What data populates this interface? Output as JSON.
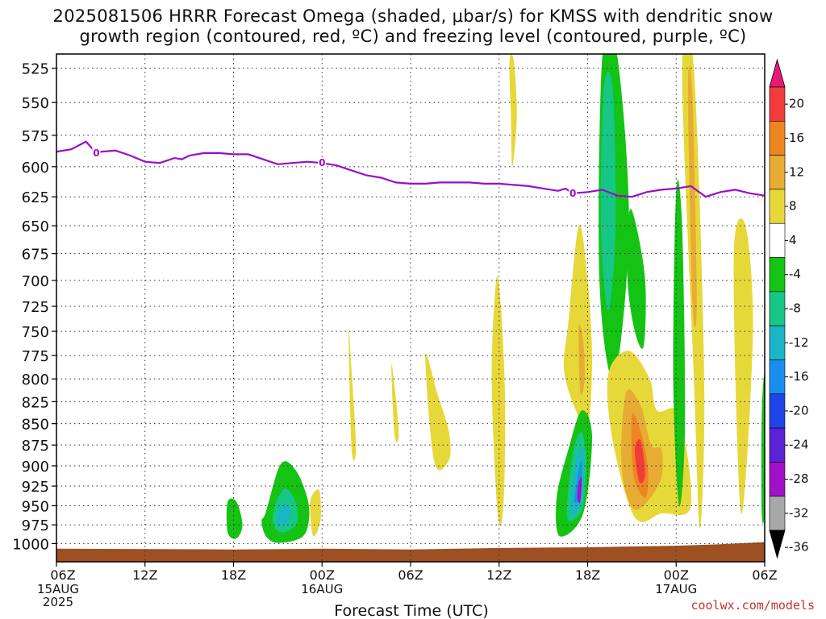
{
  "chart_data": {
    "type": "heatmap",
    "title_line1": "2025081506 HRRR Forecast Omega (shaded, μbar/s) for KMSS with dendritic snow",
    "title_line2": "growth region (contoured, red, ºC) and freezing level (contoured, purple, ºC)",
    "xlabel": "Forecast Time (UTC)",
    "credit": "coolwx.com/models",
    "x_ticks": [
      "06Z",
      "12Z",
      "18Z",
      "00Z",
      "06Z",
      "12Z",
      "18Z",
      "00Z",
      "06Z"
    ],
    "x_tick_hours": [
      0,
      6,
      12,
      18,
      24,
      30,
      36,
      42,
      48
    ],
    "date_labels": [
      {
        "hour": 0,
        "lines": [
          "15AUG",
          "2025"
        ]
      },
      {
        "hour": 18,
        "lines": [
          "16AUG"
        ]
      },
      {
        "hour": 42,
        "lines": [
          "17AUG"
        ]
      }
    ],
    "y_axis": {
      "units": "hPa",
      "ticks": [
        525,
        550,
        575,
        600,
        625,
        650,
        675,
        700,
        725,
        750,
        775,
        800,
        825,
        850,
        875,
        900,
        925,
        950,
        975,
        1000
      ],
      "range": [
        515,
        1025
      ],
      "scale": "log-pressure",
      "inverted": true
    },
    "grid": true,
    "colorbar": {
      "labels": [
        "20",
        "16",
        "12",
        "8",
        "4",
        "-4",
        "-8",
        "-12",
        "-16",
        "-20",
        "-24",
        "-28",
        "-32",
        "-36"
      ],
      "colors": [
        "#f23c3c",
        "#ee8522",
        "#e6ac33",
        "#e7d83a",
        "#ffffff",
        "#14c314",
        "#16c787",
        "#1ab5c6",
        "#1a8ef0",
        "#1f45e8",
        "#5a22d4",
        "#a011c8",
        "#a8a8a8"
      ],
      "top_arrow": "#e6197a",
      "bottom_arrow": "#000000"
    },
    "freezing_level": {
      "color": "#9a0dca",
      "label": "0",
      "label_hours": [
        2.7,
        18.0,
        35.0
      ],
      "x": [
        0,
        1,
        2,
        2.7,
        3,
        4,
        5,
        6,
        7,
        8,
        8.5,
        9,
        10,
        11,
        12,
        13,
        14,
        15,
        16,
        17,
        18,
        19,
        20,
        21,
        22,
        23,
        24,
        25,
        26,
        27,
        28,
        29,
        30,
        31,
        32,
        33,
        34,
        34.5,
        35,
        36,
        37,
        38,
        39,
        40,
        41,
        42,
        43,
        44,
        45,
        46,
        47,
        48
      ],
      "y": [
        588,
        586,
        580,
        589,
        588,
        587,
        591,
        596,
        597,
        593,
        594,
        591,
        589,
        589,
        590,
        590,
        594,
        598,
        597,
        596,
        597,
        599,
        603,
        607,
        609,
        613,
        614,
        614,
        613,
        613,
        613,
        614,
        614,
        615,
        616,
        618,
        620,
        618,
        622,
        621,
        619,
        624,
        625,
        621,
        619,
        618,
        616,
        625,
        621,
        619,
        622,
        624
      ]
    },
    "omega_regions": [
      {
        "value": -8,
        "x": [
          11.6,
          12.2,
          12.6,
          12.2,
          11.6
        ],
        "y": [
          945,
          945,
          975,
          993,
          985
        ]
      },
      {
        "value": -8,
        "x": [
          14.2,
          15.2,
          16.2,
          17.0,
          17.1,
          16.6,
          15.0,
          14.2,
          13.9
        ],
        "y": [
          958,
          898,
          905,
          940,
          970,
          992,
          999,
          990,
          970
        ]
      },
      {
        "value": -12,
        "x": [
          14.8,
          15.5,
          16.2,
          16.3,
          15.4,
          14.7
        ],
        "y": [
          950,
          928,
          945,
          972,
          985,
          975
        ]
      },
      {
        "value": -16,
        "x": [
          15.0,
          15.4,
          15.9,
          15.5,
          15.0
        ],
        "y": [
          962,
          947,
          958,
          975,
          972
        ]
      },
      {
        "value": 4,
        "x": [
          17.2,
          17.8,
          17.9,
          17.4
        ],
        "y": [
          945,
          930,
          968,
          990
        ]
      },
      {
        "value": 4,
        "x": [
          19.8,
          20.0,
          20.3,
          20.0
        ],
        "y": [
          750,
          790,
          878,
          880
        ]
      },
      {
        "value": 4,
        "x": [
          22.7,
          23.0,
          23.2,
          22.9
        ],
        "y": [
          785,
          820,
          865,
          862
        ]
      },
      {
        "value": 4,
        "x": [
          25.0,
          25.8,
          26.6,
          26.6,
          25.6
        ],
        "y": [
          775,
          815,
          860,
          893,
          895
        ]
      },
      {
        "value": 4,
        "x": [
          29.8,
          30.1,
          30.4,
          30.3,
          29.9,
          29.5
        ],
        "y": [
          700,
          722,
          820,
          950,
          960,
          800
        ]
      },
      {
        "value": 4,
        "x": [
          30.7,
          31.0,
          31.2,
          30.9,
          30.8
        ],
        "y": [
          520,
          520,
          560,
          600,
          560
        ]
      },
      {
        "value": 4,
        "x": [
          35.4,
          36.0,
          36.3,
          36.0,
          35.2,
          34.4,
          34.7
        ],
        "y": [
          650,
          700,
          780,
          855,
          835,
          790,
          740
        ]
      },
      {
        "value": 8,
        "x": [
          35.4,
          35.7,
          35.8,
          35.5
        ],
        "y": [
          745,
          760,
          800,
          815
        ]
      },
      {
        "value": -8,
        "x": [
          37.0,
          38.0,
          38.8,
          37.8,
          36.8
        ],
        "y": [
          516,
          516,
          650,
          800,
          700
        ]
      },
      {
        "value": -12,
        "x": [
          37.1,
          37.7,
          37.9,
          37.4,
          36.9
        ],
        "y": [
          540,
          540,
          650,
          730,
          650
        ]
      },
      {
        "value": -8,
        "x": [
          38.8,
          39.2,
          39.9,
          39.8,
          39.2,
          38.7
        ],
        "y": [
          640,
          645,
          700,
          765,
          750,
          700
        ]
      },
      {
        "value": 4,
        "x": [
          37.4,
          38.8,
          40.2,
          40.7,
          42.2,
          43.0,
          41.0,
          39.2,
          37.7
        ],
        "y": [
          795,
          770,
          800,
          835,
          840,
          950,
          960,
          965,
          870
        ]
      },
      {
        "value": 8,
        "x": [
          38.6,
          39.6,
          40.3,
          41.0,
          40.9,
          39.2,
          38.3
        ],
        "y": [
          815,
          830,
          875,
          880,
          920,
          955,
          900
        ]
      },
      {
        "value": 12,
        "x": [
          39.0,
          39.6,
          40.1,
          39.9,
          39.1
        ],
        "y": [
          840,
          860,
          905,
          940,
          910
        ]
      },
      {
        "value": 16,
        "x": [
          39.2,
          39.6,
          39.9,
          39.5
        ],
        "y": [
          880,
          870,
          910,
          920
        ]
      },
      {
        "value": -8,
        "x": [
          34.7,
          35.6,
          36.3,
          35.7,
          34.1,
          33.9
        ],
        "y": [
          880,
          835,
          865,
          960,
          990,
          940
        ]
      },
      {
        "value": -12,
        "x": [
          35.0,
          35.6,
          35.9,
          35.6,
          34.6
        ],
        "y": [
          885,
          860,
          900,
          955,
          965
        ]
      },
      {
        "value": -16,
        "x": [
          35.2,
          35.7,
          35.6,
          34.9
        ],
        "y": [
          895,
          880,
          945,
          958
        ]
      },
      {
        "value": -20,
        "x": [
          35.4,
          35.6,
          35.5,
          35.1
        ],
        "y": [
          905,
          895,
          935,
          945
        ]
      },
      {
        "value": -32,
        "x": [
          35.4,
          35.6,
          35.5,
          35.3
        ],
        "y": [
          920,
          915,
          945,
          940
        ]
      },
      {
        "value": 4,
        "x": [
          42.4,
          43.2,
          43.9,
          43.6,
          43.2
        ],
        "y": [
          528,
          525,
          800,
          980,
          800
        ]
      },
      {
        "value": 8,
        "x": [
          42.8,
          43.1,
          43.4,
          43.1
        ],
        "y": [
          540,
          545,
          720,
          720
        ]
      },
      {
        "value": -8,
        "x": [
          42.0,
          42.4,
          42.6,
          42.2,
          41.8
        ],
        "y": [
          620,
          650,
          850,
          950,
          800
        ]
      },
      {
        "value": 4,
        "x": [
          45.9,
          46.7,
          47.2,
          46.4
        ],
        "y": [
          680,
          650,
          750,
          960
        ]
      },
      {
        "value": -8,
        "x": [
          47.8,
          48.0,
          48.0,
          47.8
        ],
        "y": [
          840,
          800,
          950,
          960
        ]
      }
    ],
    "terrain": {
      "color": "#9e5023",
      "x": [
        0,
        12,
        18,
        24,
        30,
        36,
        42,
        45,
        48
      ],
      "y": [
        1007,
        1008,
        1007,
        1008,
        1006,
        1005,
        1003,
        1001,
        998
      ]
    }
  }
}
